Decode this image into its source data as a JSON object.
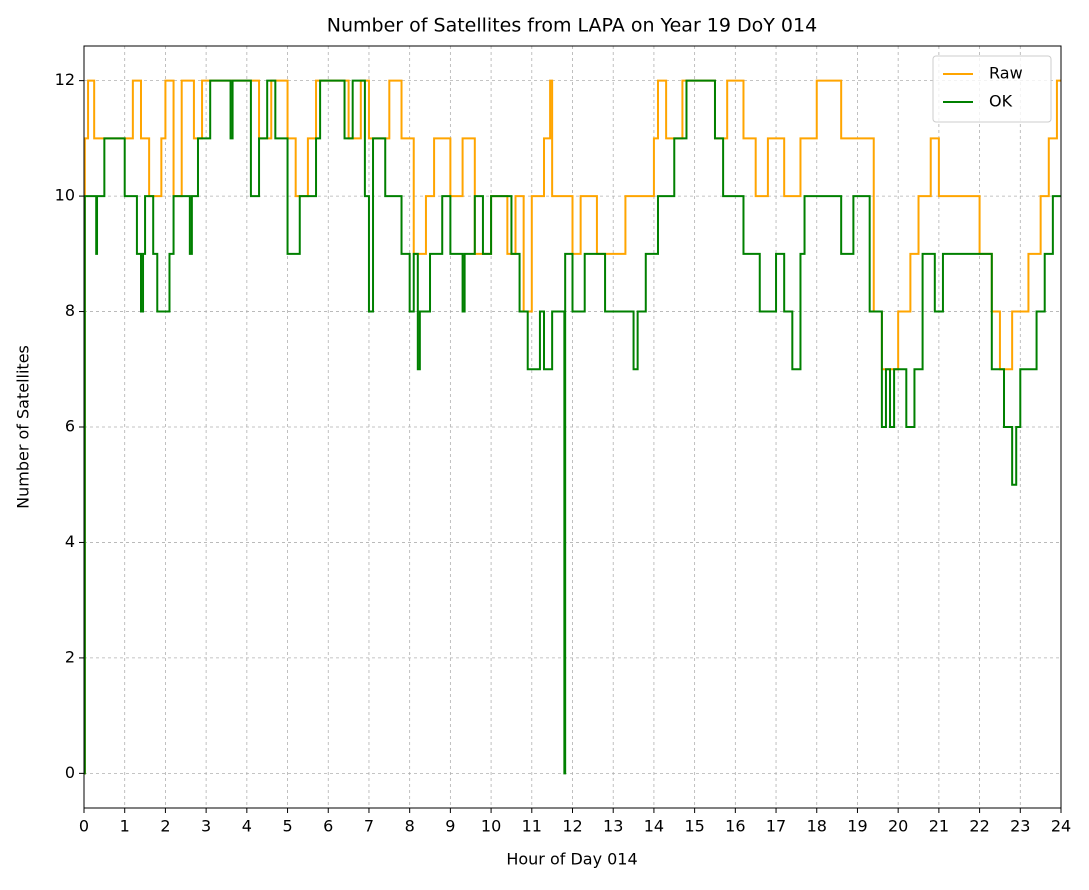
{
  "chart_data": {
    "type": "line",
    "drawstyle": "steps-post",
    "title": "Number of Satellites from LAPA on Year 19 DoY 014",
    "x_label": "Hour of Day 014",
    "y_label": "Number of Satellites",
    "xlim": [
      0,
      24
    ],
    "ylim": [
      -0.6,
      12.6
    ],
    "xticks": [
      0,
      1,
      2,
      3,
      4,
      5,
      6,
      7,
      8,
      9,
      10,
      11,
      12,
      13,
      14,
      15,
      16,
      17,
      18,
      19,
      20,
      21,
      22,
      23,
      24
    ],
    "yticks": [
      0,
      2,
      4,
      6,
      8,
      10,
      12
    ],
    "grid": true,
    "legend": "upper right",
    "series": [
      {
        "name": "Raw",
        "color": "#ffa500",
        "x": [
          0,
          0.02,
          0.1,
          0.25,
          0.5,
          1.2,
          1.4,
          1.6,
          1.9,
          2.0,
          2.2,
          2.4,
          2.7,
          2.9,
          3.2,
          4.0,
          4.3,
          4.6,
          5.0,
          5.2,
          5.5,
          5.7,
          6.5,
          6.8,
          7.0,
          7.5,
          7.8,
          8.1,
          8.4,
          8.6,
          9.0,
          9.3,
          9.6,
          10.0,
          10.4,
          10.6,
          10.8,
          11.0,
          11.3,
          11.45,
          11.5,
          11.8,
          12.0,
          12.2,
          12.6,
          13.0,
          13.3,
          13.7,
          14.0,
          14.1,
          14.3,
          14.7,
          15.0,
          15.5,
          15.8,
          16.2,
          16.5,
          16.8,
          17.2,
          17.6,
          18.0,
          18.6,
          19.0,
          19.4,
          19.6,
          20.0,
          20.3,
          20.5,
          20.8,
          21.0,
          21.5,
          22.0,
          22.3,
          22.5,
          22.8,
          23.2,
          23.5,
          23.7,
          23.9,
          24
        ],
        "values": [
          0,
          11,
          12,
          11,
          11,
          12,
          11,
          10,
          11,
          12,
          10,
          12,
          11,
          12,
          12,
          12,
          11,
          12,
          11,
          10,
          11,
          12,
          11,
          12,
          11,
          12,
          11,
          9,
          10,
          11,
          10,
          11,
          9,
          10,
          9,
          10,
          8,
          10,
          11,
          12,
          10,
          10,
          9,
          10,
          9,
          9,
          10,
          10,
          11,
          12,
          11,
          12,
          12,
          11,
          12,
          11,
          10,
          11,
          10,
          11,
          12,
          11,
          11,
          8,
          7,
          8,
          9,
          10,
          11,
          10,
          10,
          9,
          8,
          7,
          8,
          9,
          10,
          11,
          12,
          12
        ]
      },
      {
        "name": "OK",
        "color": "#008000",
        "x": [
          0,
          0.02,
          0.3,
          0.32,
          0.5,
          1.0,
          1.3,
          1.4,
          1.45,
          1.5,
          1.7,
          1.8,
          2.1,
          2.2,
          2.6,
          2.65,
          2.8,
          3.1,
          3.6,
          3.65,
          4.1,
          4.3,
          4.5,
          4.7,
          5.0,
          5.3,
          5.7,
          5.8,
          6.4,
          6.6,
          6.9,
          7.0,
          7.1,
          7.4,
          7.8,
          8.0,
          8.1,
          8.2,
          8.25,
          8.5,
          8.8,
          9.0,
          9.3,
          9.35,
          9.6,
          9.8,
          10.0,
          10.5,
          10.7,
          10.9,
          11.2,
          11.3,
          11.5,
          11.7,
          11.8,
          11.82,
          12.0,
          12.3,
          12.8,
          13.2,
          13.5,
          13.6,
          13.8,
          14.1,
          14.5,
          14.8,
          15.5,
          15.7,
          16.1,
          16.2,
          16.6,
          17.0,
          17.2,
          17.4,
          17.6,
          17.7,
          18.2,
          18.6,
          18.9,
          19.1,
          19.3,
          19.6,
          19.7,
          19.8,
          19.9,
          20.2,
          20.4,
          20.6,
          20.9,
          21.1,
          22.0,
          22.3,
          22.6,
          22.8,
          22.9,
          23.0,
          23.4,
          23.6,
          23.8,
          24
        ],
        "values": [
          0,
          10,
          9,
          10,
          11,
          10,
          9,
          8,
          9,
          10,
          9,
          8,
          9,
          10,
          9,
          10,
          11,
          12,
          11,
          12,
          10,
          11,
          12,
          11,
          9,
          10,
          11,
          12,
          11,
          12,
          10,
          8,
          11,
          10,
          9,
          8,
          9,
          7,
          8,
          9,
          10,
          9,
          8,
          9,
          10,
          9,
          10,
          9,
          8,
          7,
          8,
          7,
          8,
          8,
          0,
          9,
          8,
          9,
          8,
          8,
          7,
          8,
          9,
          10,
          11,
          12,
          11,
          10,
          10,
          9,
          8,
          9,
          8,
          7,
          9,
          10,
          10,
          9,
          10,
          10,
          8,
          6,
          7,
          6,
          7,
          6,
          7,
          9,
          8,
          9,
          9,
          7,
          6,
          5,
          6,
          7,
          8,
          9,
          10,
          10
        ]
      }
    ]
  }
}
